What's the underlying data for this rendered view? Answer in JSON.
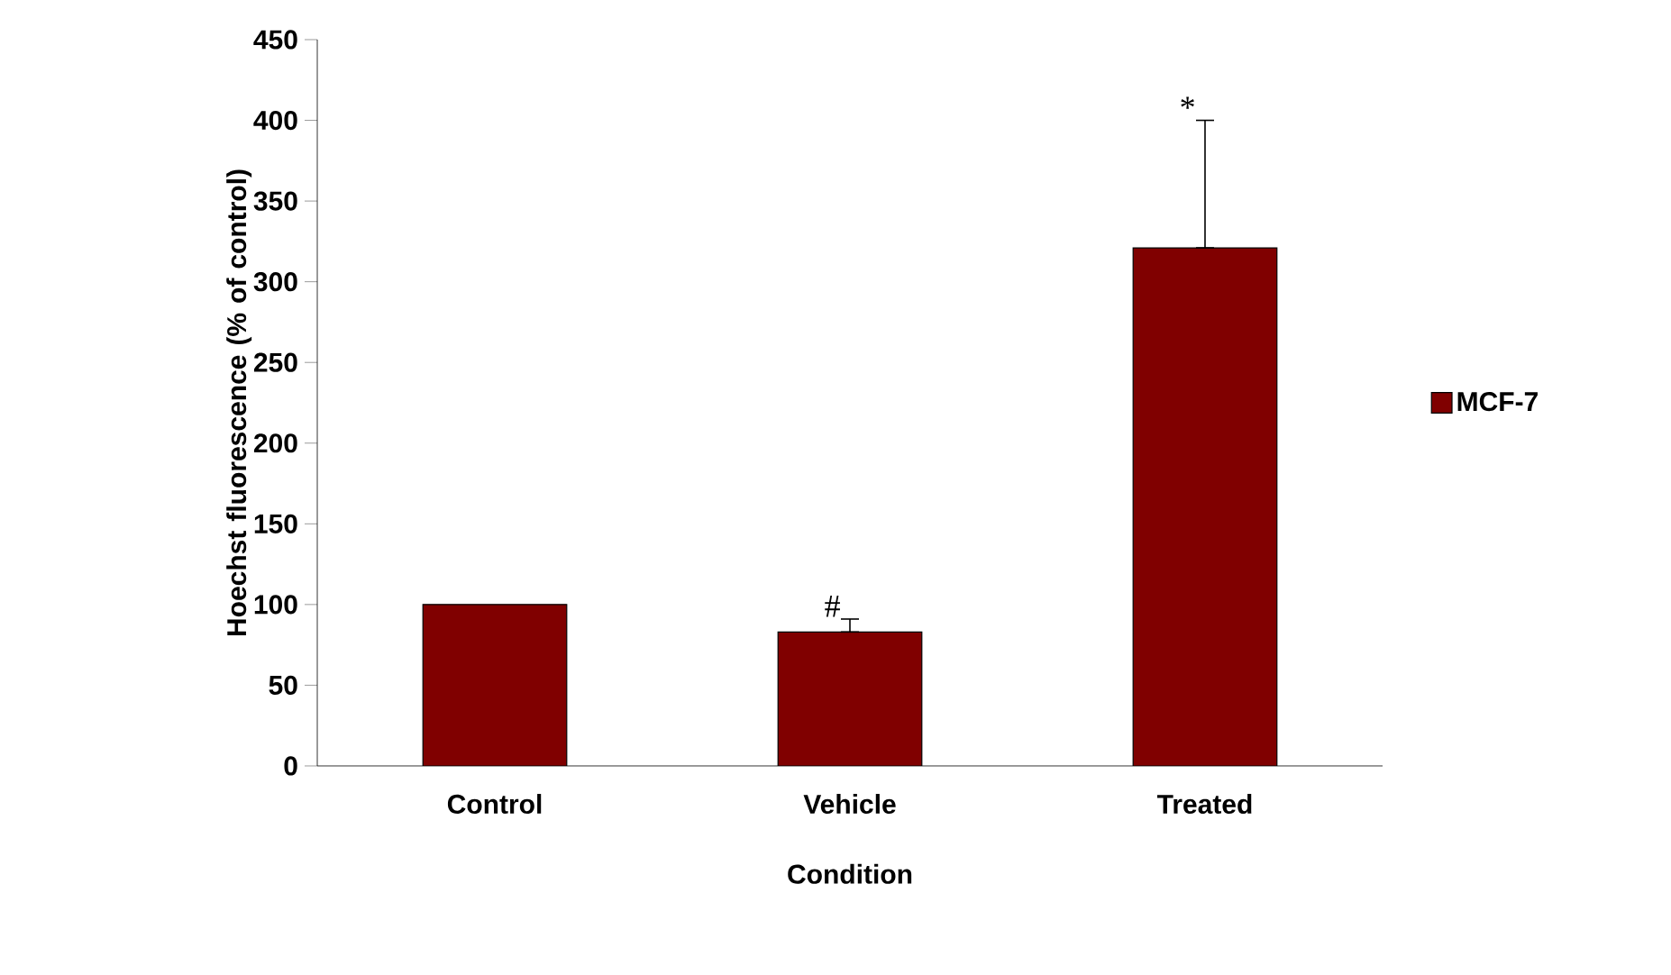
{
  "chart_data": {
    "type": "bar",
    "xlabel": "Condition",
    "ylabel": "Hoechst fluorescence (% of control)",
    "categories": [
      "Control",
      "Vehicle",
      "Treated"
    ],
    "series": [
      {
        "name": "MCF-7",
        "color": "#800000",
        "values": [
          100,
          83,
          321
        ],
        "errors": [
          null,
          [
            83,
            91
          ],
          [
            321,
            400
          ]
        ]
      }
    ],
    "ylim": [
      0,
      450
    ],
    "yticks": [
      0,
      50,
      100,
      150,
      200,
      250,
      300,
      350,
      400,
      450
    ],
    "annotations": [
      {
        "text": "#",
        "x": "Vehicle",
        "y": 91
      },
      {
        "text": "*",
        "x": "Treated",
        "y": 400
      }
    ],
    "legend": "right",
    "grid": false
  }
}
